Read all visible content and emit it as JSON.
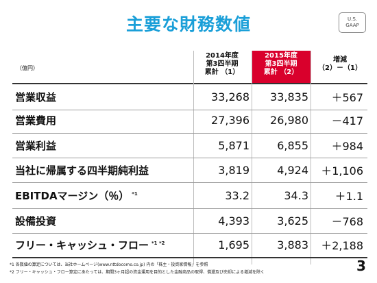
{
  "title": "主要な財務数値",
  "badge": {
    "line1": "U.S.",
    "line2": "GAAP"
  },
  "unit": "（億円）",
  "headers": {
    "col1": {
      "line1": "2014年度",
      "line2": "第3四半期",
      "line3": "累計 （1）"
    },
    "col2": {
      "line1": "2015年度",
      "line2": "第3四半期",
      "line3": "累計 （2）"
    },
    "col3": {
      "line1": "増減",
      "line2": "（2）－（1）"
    }
  },
  "rows": [
    {
      "label": "営業収益",
      "note": "",
      "v2014": "33,268",
      "v2015": "33,835",
      "diff": "＋567"
    },
    {
      "label": "営業費用",
      "note": "",
      "v2014": "27,396",
      "v2015": "26,980",
      "diff": "－417"
    },
    {
      "label": "営業利益",
      "note": "",
      "v2014": "5,871",
      "v2015": "6,855",
      "diff": "＋984"
    },
    {
      "label": "当社に帰属する四半期純利益",
      "note": "",
      "v2014": "3,819",
      "v2015": "4,924",
      "diff": "＋1,106"
    },
    {
      "label": "EBITDAマージン（％）",
      "note": "*1",
      "v2014": "33.2",
      "v2015": "34.3",
      "diff": "＋1.1"
    },
    {
      "label": "設備投資",
      "note": "",
      "v2014": "4,393",
      "v2015": "3,625",
      "diff": "－768"
    },
    {
      "label": "フリー・キャッシュ・フロー",
      "note": "*1 *2",
      "v2014": "1,695",
      "v2015": "3,883",
      "diff": "＋2,188"
    }
  ],
  "footnotes": [
    "*1 各数値の算定については、当社ホームページ(www.nttdocomo.co.jp) 内の「株主・投資家情報」を参照",
    "*2 フリー・キャッシュ・フロー算定にあたっては、期間3ヶ月超の資金運用を目的とした金融商品の取得、償還及び売却による増減を除く"
  ],
  "page_number": "3",
  "colors": {
    "title": "#1a9fd8",
    "highlight": "#d9002c"
  }
}
